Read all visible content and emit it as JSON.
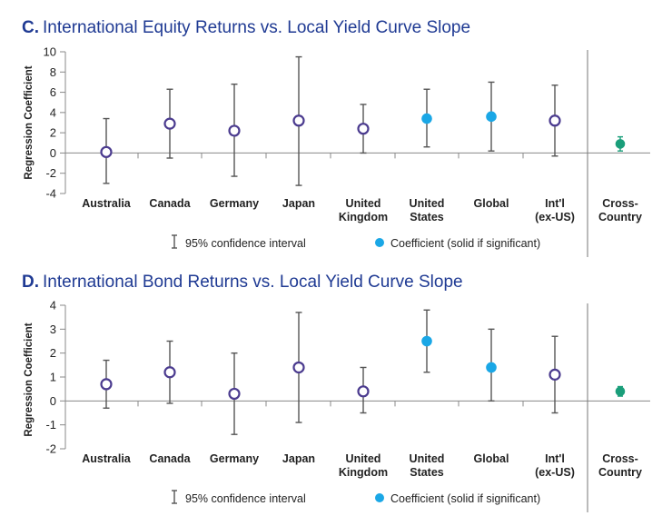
{
  "colors": {
    "title_letter": "#1f3a93",
    "title_text": "#1f3a93",
    "hollow": "#4b3b8f",
    "significant": "#1aa7e6",
    "cross_country": "#1a9e7a",
    "errorbar": "#555555",
    "axis": "#888888",
    "text": "#222222"
  },
  "chart_data": [
    {
      "type": "errorbar",
      "panel_letter": "C.",
      "title": "International Equity Returns vs. Local Yield Curve Slope",
      "ylabel": "Regression Coefficient",
      "ylim": [
        -4,
        10
      ],
      "yticks": [
        10,
        8,
        6,
        4,
        2,
        0,
        -2,
        -4
      ],
      "categories": [
        "Australia",
        "Canada",
        "Germany",
        "Japan",
        "United Kingdom",
        "United States",
        "Global",
        "Int'l (ex-US)",
        "Cross-Country"
      ],
      "category_labels": [
        [
          "Australia"
        ],
        [
          "Canada"
        ],
        [
          "Germany"
        ],
        [
          "Japan"
        ],
        [
          "United",
          "Kingdom"
        ],
        [
          "United",
          "States"
        ],
        [
          "Global"
        ],
        [
          "Int'l",
          "(ex-US)"
        ],
        [
          "Cross-",
          "Country"
        ]
      ],
      "coefficients": [
        0.1,
        2.9,
        2.2,
        3.2,
        2.4,
        3.4,
        3.6,
        3.2,
        0.9
      ],
      "ci_low": [
        -3.0,
        -0.5,
        -2.3,
        -3.2,
        0.0,
        0.6,
        0.2,
        -0.3,
        0.2
      ],
      "ci_high": [
        3.4,
        6.3,
        6.8,
        9.5,
        4.8,
        6.3,
        7.0,
        6.7,
        1.6
      ],
      "significant": [
        false,
        false,
        false,
        false,
        false,
        true,
        true,
        false,
        true
      ],
      "legend": {
        "interval": "95% confidence interval",
        "coefficient": "Coefficient (solid if significant)"
      }
    },
    {
      "type": "errorbar",
      "panel_letter": "D.",
      "title": "International Bond Returns vs. Local Yield Curve Slope",
      "ylabel": "Regression Coefficient",
      "ylim": [
        -2,
        4
      ],
      "yticks": [
        4,
        3,
        2,
        1,
        0,
        -1,
        -2
      ],
      "categories": [
        "Australia",
        "Canada",
        "Germany",
        "Japan",
        "United Kingdom",
        "United States",
        "Global",
        "Int'l (ex-US)",
        "Cross-Country"
      ],
      "category_labels": [
        [
          "Australia"
        ],
        [
          "Canada"
        ],
        [
          "Germany"
        ],
        [
          "Japan"
        ],
        [
          "United",
          "Kingdom"
        ],
        [
          "United",
          "States"
        ],
        [
          "Global"
        ],
        [
          "Int'l",
          "(ex-US)"
        ],
        [
          "Cross-",
          "Country"
        ]
      ],
      "coefficients": [
        0.7,
        1.2,
        0.3,
        1.4,
        0.4,
        2.5,
        1.4,
        1.1,
        0.4
      ],
      "ci_low": [
        -0.3,
        -0.1,
        -1.4,
        -0.9,
        -0.5,
        1.2,
        0.0,
        -0.5,
        0.2
      ],
      "ci_high": [
        1.7,
        2.5,
        2.0,
        3.7,
        1.4,
        3.8,
        3.0,
        2.7,
        0.6
      ],
      "significant": [
        false,
        false,
        false,
        false,
        false,
        true,
        true,
        false,
        true
      ],
      "legend": {
        "interval": "95% confidence interval",
        "coefficient": "Coefficient (solid if significant)"
      }
    }
  ]
}
